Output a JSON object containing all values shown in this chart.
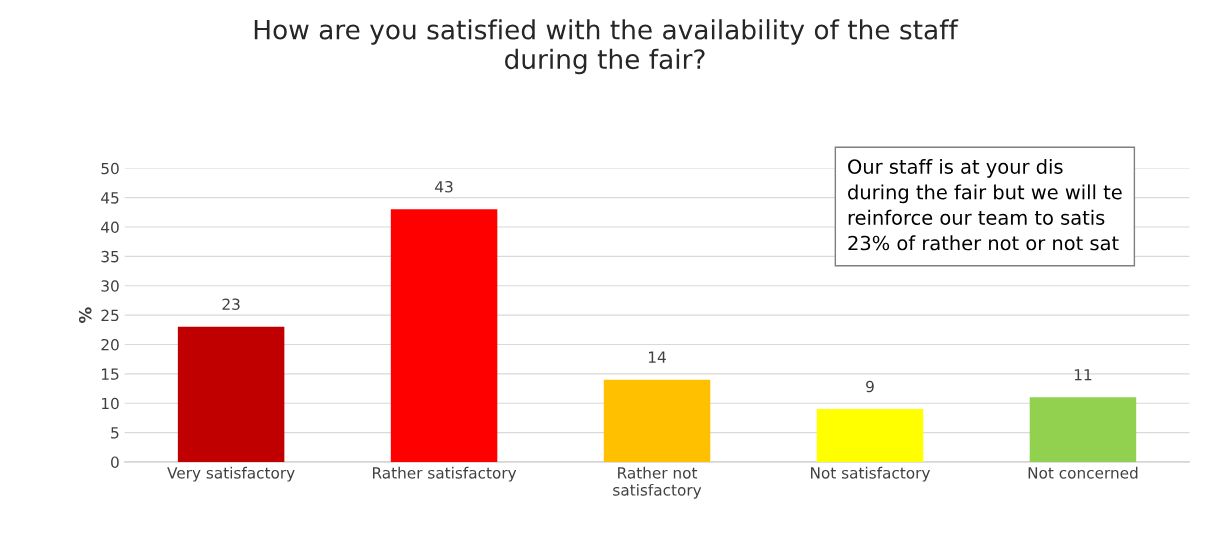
{
  "chart_data": {
    "type": "bar",
    "title": "How are you satisfied with the availability of the staff\nduring the fair?",
    "ylabel": "%",
    "categories": [
      "Very satisfactory",
      "Rather satisfactory",
      "Rather not\nsatisfactory",
      "Not satisfactory",
      "Not concerned"
    ],
    "values": [
      23,
      43,
      14,
      9,
      11
    ],
    "colors": [
      "#c00000",
      "#ff0000",
      "#ffc000",
      "#ffff00",
      "#92d050"
    ],
    "ylim": [
      0,
      50
    ],
    "yticks": [
      0,
      5,
      10,
      15,
      20,
      25,
      30,
      35,
      40,
      45,
      50
    ],
    "grid": "y",
    "data_labels": true,
    "annotations": [
      "Our staff is at your dis\nduring the fair but we will te\nreinforce our team to satis\n23% of rather not or not sat"
    ]
  }
}
